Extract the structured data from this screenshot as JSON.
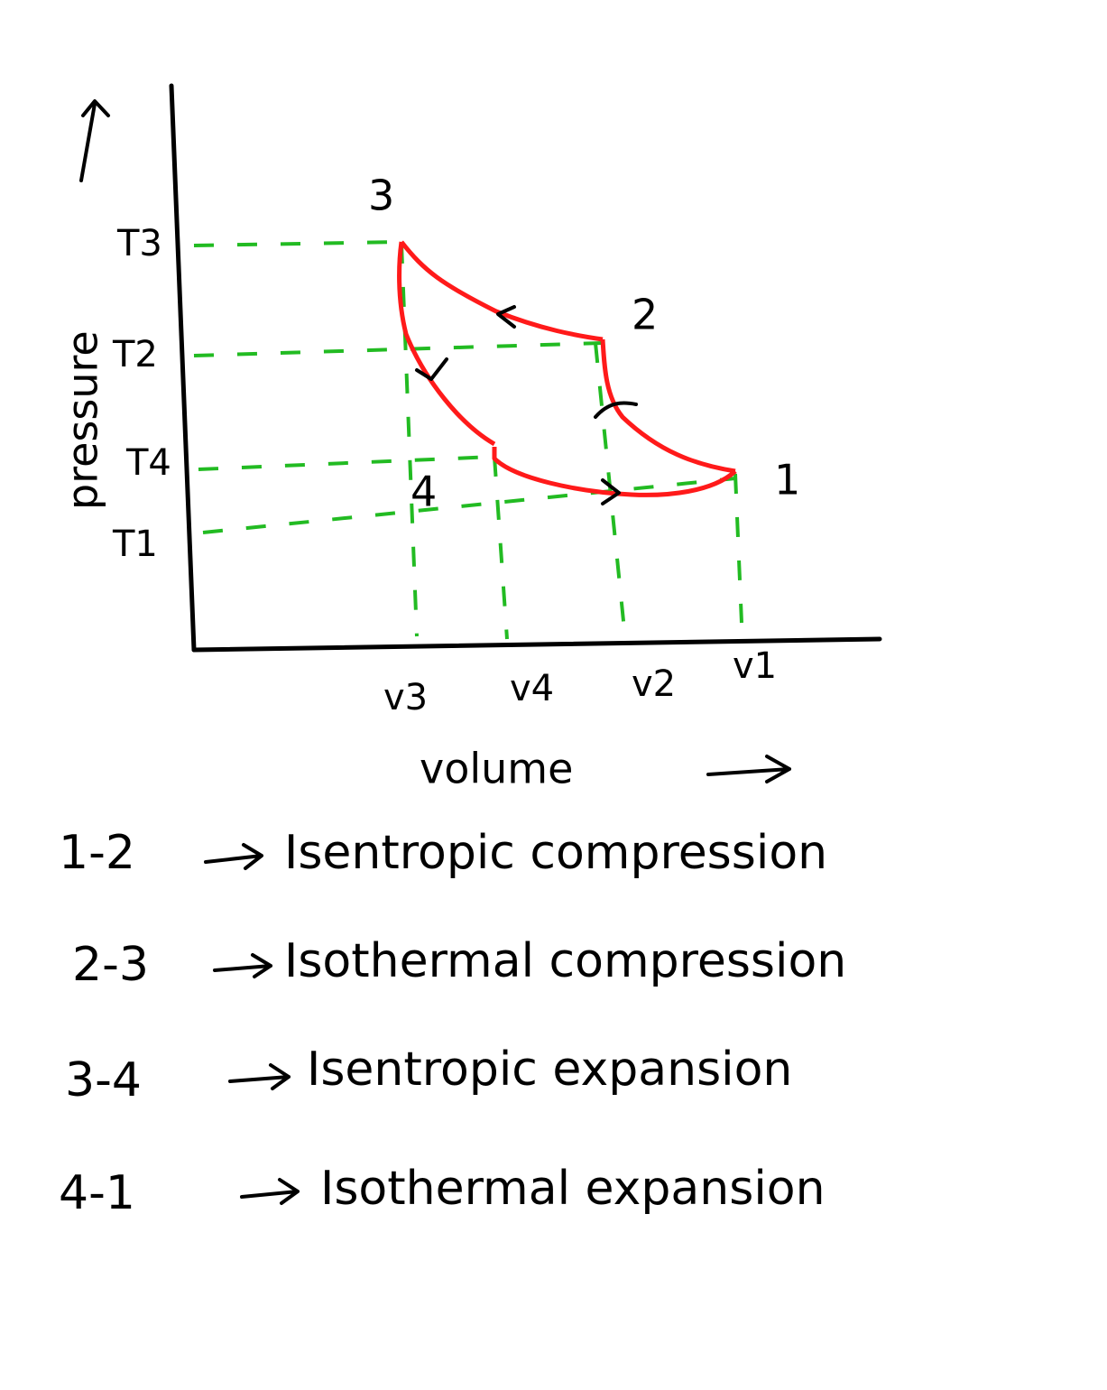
{
  "diagram": {
    "y_axis_label": "pressure",
    "x_axis_label": "volume",
    "pressure_levels": [
      "T3",
      "T2",
      "T4",
      "T1"
    ],
    "volume_levels": [
      "v3",
      "v4",
      "v2",
      "v1"
    ],
    "points": [
      "1",
      "2",
      "3",
      "4"
    ]
  },
  "processes": [
    {
      "from": "1-2",
      "description": "Isentropic compression"
    },
    {
      "from": "2-3",
      "description": "Isothermal compression"
    },
    {
      "from": "3-4",
      "description": "Isentropic expansion"
    },
    {
      "from": "4-1",
      "description": "Isothermal expansion"
    }
  ]
}
